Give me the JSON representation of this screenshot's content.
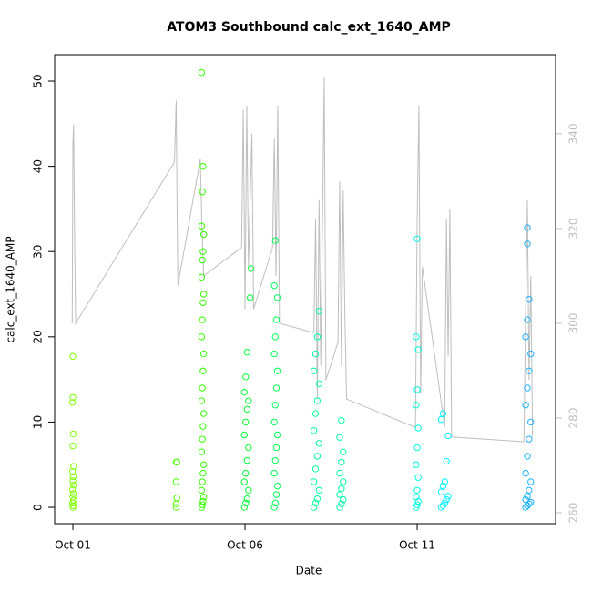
{
  "chart_data": {
    "type": "scatter",
    "title": "ATOM3 Southbound calc_ext_1640_AMP",
    "x_label": "Date",
    "y_label": "calc_ext_1640_AMP",
    "xlim": [
      0.47,
      15.02
    ],
    "ylim": [
      -1.92,
      53.1
    ],
    "y2lim": [
      257.7,
      356.7
    ],
    "xticks": [
      {
        "value": 1,
        "label": "Oct 01"
      },
      {
        "value": 6,
        "label": "Oct 06"
      },
      {
        "value": 11,
        "label": "Oct 11"
      }
    ],
    "yticks": [
      0,
      10,
      20,
      30,
      40,
      50
    ],
    "y2ticks": [
      260,
      280,
      300,
      320,
      340
    ],
    "series": [
      {
        "color": "#80ff00",
        "x": [
          1.0,
          1.01,
          0.99,
          1.02,
          1.0,
          1.01,
          0.99,
          1.02,
          1.0,
          1.01,
          0.99,
          1.02,
          1.0,
          1.01,
          0.99,
          1.0,
          1.0
        ],
        "values": [
          0,
          0.2,
          0.5,
          0.8,
          1.2,
          1.6,
          2.1,
          2.6,
          3.1,
          3.6,
          4.2,
          4.8,
          7.2,
          8.6,
          12.3,
          12.9,
          17.7
        ]
      },
      {
        "color": "#4dff00",
        "x": [
          4.0,
          4.0,
          4.02,
          4.0,
          4.02,
          4.0
        ],
        "values": [
          0,
          0.4,
          1.1,
          3.0,
          5.3,
          5.3
        ]
      },
      {
        "color": "#33ff00",
        "x": [
          4.74,
          4.76,
          4.78,
          4.8,
          4.74,
          4.76,
          4.78,
          4.8,
          4.74,
          4.76,
          4.78,
          4.8,
          4.74,
          4.76,
          4.78,
          4.8,
          4.74,
          4.76,
          4.78,
          4.8,
          4.74,
          4.76,
          4.78,
          4.8,
          4.74,
          4.76,
          4.78,
          4.74
        ],
        "values": [
          0,
          0.3,
          0.7,
          1.2,
          2,
          3,
          4,
          5,
          6.5,
          8,
          9.5,
          11,
          12.5,
          14,
          16,
          18,
          20,
          22,
          24,
          25,
          27,
          29,
          30,
          32,
          33,
          37,
          40,
          51
        ]
      },
      {
        "color": "#00ff33",
        "x": [
          5.98,
          6.02,
          6.06,
          6.1,
          5.98,
          6.02,
          6.06,
          6.1,
          5.98,
          6.02,
          6.06,
          6.1,
          5.98,
          6.02,
          6.06,
          6.15,
          6.17
        ],
        "values": [
          0,
          0.5,
          1,
          2,
          3,
          4,
          5.5,
          7,
          8.5,
          10,
          11.5,
          12.5,
          13.5,
          15.3,
          18.2,
          24.6,
          28
        ]
      },
      {
        "color": "#00ff55",
        "x": [
          6.85,
          6.88,
          6.91,
          6.94,
          6.85,
          6.88,
          6.91,
          6.94,
          6.85,
          6.88,
          6.91,
          6.94,
          6.85,
          6.88,
          6.91,
          6.94,
          6.85,
          6.88
        ],
        "values": [
          0,
          0.5,
          1.5,
          2.5,
          4,
          5.5,
          7,
          8.5,
          10,
          12,
          14,
          16,
          18,
          20,
          22,
          24.6,
          26,
          31.3
        ]
      },
      {
        "color": "#00ff99",
        "x": [
          8.0,
          8.05,
          8.1,
          8.15,
          8.0,
          8.05,
          8.1,
          8.15,
          8.0,
          8.05,
          8.1,
          8.15,
          8.0,
          8.05,
          8.1,
          8.15
        ],
        "values": [
          0,
          0.5,
          1,
          2,
          3,
          4.5,
          6,
          7.5,
          9,
          11,
          12.5,
          14.5,
          16,
          18,
          20,
          23
        ]
      },
      {
        "color": "#00ffaa",
        "x": [
          8.75,
          8.8,
          8.85,
          8.75,
          8.8,
          8.85,
          8.75,
          8.8,
          8.85,
          8.75,
          8.8
        ],
        "values": [
          0,
          0.4,
          0.9,
          1.5,
          2.2,
          3,
          4,
          5.3,
          6.5,
          8.2,
          10.2
        ]
      },
      {
        "color": "#00ffe0",
        "x": [
          10.97,
          11.0,
          11.03,
          10.97,
          11.0,
          11.03,
          10.97,
          11.0,
          11.03,
          10.97,
          11.0,
          11.03,
          10.97,
          11.0
        ],
        "values": [
          0,
          0.3,
          0.7,
          1.2,
          2,
          3.5,
          5,
          7,
          9.3,
          12,
          13.8,
          18.5,
          20,
          31.5
        ]
      },
      {
        "color": "#00f5ff",
        "x": [
          11.7,
          11.75,
          11.8,
          11.85,
          11.9,
          11.7,
          11.75,
          11.8,
          11.85,
          11.9,
          11.7,
          11.75
        ],
        "values": [
          0,
          0.2,
          0.5,
          0.9,
          1.3,
          1.8,
          2.5,
          3,
          5.4,
          8.4,
          10.3,
          11
        ]
      },
      {
        "color": "#1ab2ff",
        "x": [
          14.15,
          14.2,
          14.25,
          14.3,
          14.15,
          14.2,
          14.25,
          14.3,
          14.15,
          14.2,
          14.25,
          14.3,
          14.15,
          14.2,
          14.25,
          14.3,
          14.15,
          14.2,
          14.25,
          14.2,
          14.2
        ],
        "values": [
          0,
          0.2,
          0.4,
          0.6,
          0.9,
          1.3,
          2,
          3,
          4,
          6,
          8,
          10,
          12,
          14,
          16,
          18,
          20,
          22,
          24.4,
          30.9,
          32.8
        ]
      },
      {
        "axis": "y2",
        "color": "#bebebe",
        "x": [
          0.98,
          1.0,
          1.02,
          1.05,
          1.08,
          3.95,
          4.0,
          4.03,
          4.05,
          4.7,
          4.75,
          4.8,
          5.9,
          5.95,
          6.0,
          6.05,
          6.1,
          6.2,
          6.25,
          6.8,
          6.85,
          6.9,
          6.95,
          7.0,
          8.0,
          8.05,
          8.1,
          8.15,
          8.2,
          8.3,
          8.35,
          8.7,
          8.75,
          8.8,
          8.85,
          8.9,
          8.95,
          10.95,
          11.0,
          11.05,
          11.1,
          11.15,
          11.8,
          11.85,
          11.9,
          11.95,
          12.0,
          14.1,
          14.15,
          14.2,
          14.25,
          14.3,
          14.35
        ],
        "values": [
          300,
          338,
          342,
          318,
          300,
          334,
          347,
          321,
          308,
          334.6,
          320,
          310,
          316,
          345,
          303,
          346,
          312,
          340,
          303,
          316,
          339,
          310,
          346,
          300,
          298,
          322,
          284,
          326,
          291,
          352,
          288,
          296,
          330,
          291,
          328,
          302,
          284,
          278,
          322,
          346,
          285,
          312,
          278,
          322,
          293,
          324,
          276,
          275,
          302,
          326,
          288,
          310,
          276
        ]
      }
    ]
  }
}
